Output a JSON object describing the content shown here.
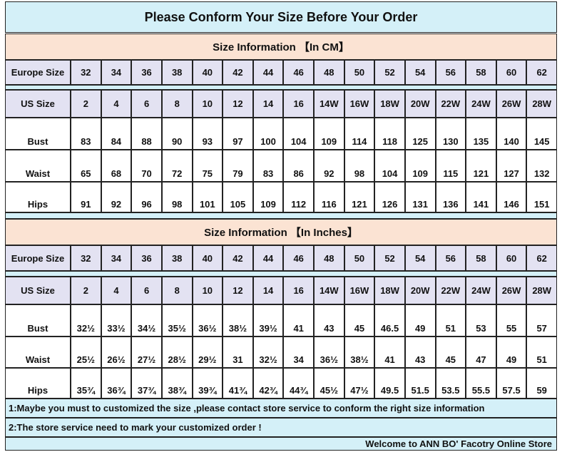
{
  "title": "Please Conform Your Size Before Your Order",
  "sections": [
    {
      "title": "Size Information 【In CM】",
      "rows": [
        {
          "label": "Europe Size",
          "cells": [
            "32",
            "34",
            "36",
            "38",
            "40",
            "42",
            "44",
            "46",
            "48",
            "50",
            "52",
            "54",
            "56",
            "58",
            "60",
            "62"
          ]
        },
        {
          "label": "US Size",
          "cells": [
            "2",
            "4",
            "6",
            "8",
            "10",
            "12",
            "14",
            "16",
            "14W",
            "16W",
            "18W",
            "20W",
            "22W",
            "24W",
            "26W",
            "28W"
          ]
        },
        {
          "label": "Bust",
          "cells": [
            "83",
            "84",
            "88",
            "90",
            "93",
            "97",
            "100",
            "104",
            "109",
            "114",
            "118",
            "125",
            "130",
            "135",
            "140",
            "145"
          ]
        },
        {
          "label": "Waist",
          "cells": [
            "65",
            "68",
            "70",
            "72",
            "75",
            "79",
            "83",
            "86",
            "92",
            "98",
            "104",
            "109",
            "115",
            "121",
            "127",
            "132"
          ]
        },
        {
          "label": "Hips",
          "cells": [
            "91",
            "92",
            "96",
            "98",
            "101",
            "105",
            "109",
            "112",
            "116",
            "121",
            "126",
            "131",
            "136",
            "141",
            "146",
            "151"
          ]
        }
      ]
    },
    {
      "title": "Size Information 【In Inches】",
      "rows": [
        {
          "label": "Europe Size",
          "cells": [
            "32",
            "34",
            "36",
            "38",
            "40",
            "42",
            "44",
            "46",
            "48",
            "50",
            "52",
            "54",
            "56",
            "58",
            "60",
            "62"
          ]
        },
        {
          "label": "US Size",
          "cells": [
            "2",
            "4",
            "6",
            "8",
            "10",
            "12",
            "14",
            "16",
            "14W",
            "16W",
            "18W",
            "20W",
            "22W",
            "24W",
            "26W",
            "28W"
          ]
        },
        {
          "label": "Bust",
          "cells": [
            "32½",
            "33½",
            "34½",
            "35½",
            "36½",
            "38½",
            "39½",
            "41",
            "43",
            "45",
            "46.5",
            "49",
            "51",
            "53",
            "55",
            "57"
          ]
        },
        {
          "label": "Waist",
          "cells": [
            "25½",
            "26½",
            "27½",
            "28½",
            "29½",
            "31",
            "32½",
            "34",
            "36½",
            "38½",
            "41",
            "43",
            "45",
            "47",
            "49",
            "51"
          ]
        },
        {
          "label": "Hips",
          "cells": [
            "35¾",
            "36¾",
            "37¾",
            "38¾",
            "39¾",
            "41¾",
            "42¾",
            "44¾",
            "45½",
            "47½",
            "49.5",
            "51.5",
            "53.5",
            "55.5",
            "57.5",
            "59"
          ]
        }
      ]
    }
  ],
  "notes": [
    "1:Maybe you must to customized the size ,please contact store service to conform the right size information",
    "2:The store service need to mark your customized order !"
  ],
  "footer": "Welcome to ANN BO' Facotry Online Store"
}
